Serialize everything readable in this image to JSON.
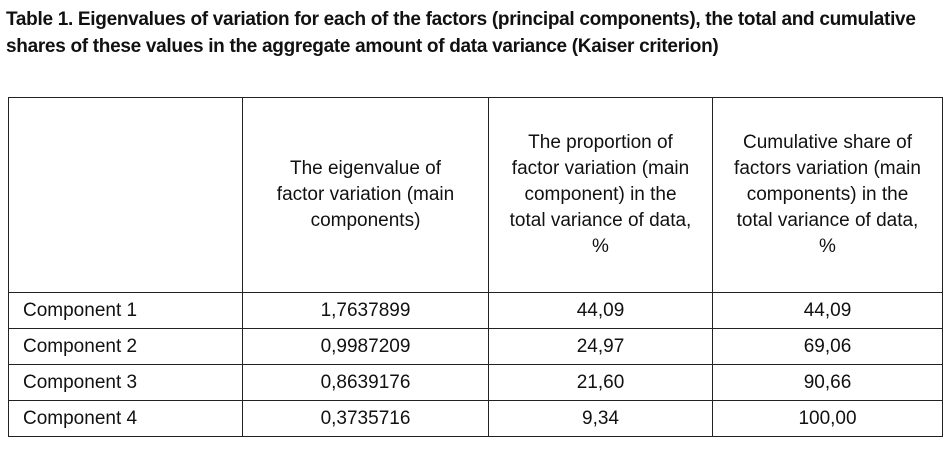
{
  "title": "Table 1. Eigenvalues of variation for each of the factors (principal components), the total and cumulative shares of these values in the aggregate amount of data variance (Kaiser criterion)",
  "table": {
    "columns": [
      "The eigenvalue of factor variation (main components)",
      "The proportion of factor variation (main component) in the total variance of data, %",
      "Cumulative share of factors variation (main components) in the total variance of data, %"
    ],
    "rows": [
      [
        "Component 1",
        "1,7637899",
        "44,09",
        "44,09"
      ],
      [
        "Component 2",
        "0,9987209",
        "24,97",
        "69,06"
      ],
      [
        "Component 3",
        "0,8639176",
        "21,60",
        "90,66"
      ],
      [
        "Component 4",
        "0,3735716",
        "9,34",
        "100,00"
      ]
    ]
  }
}
